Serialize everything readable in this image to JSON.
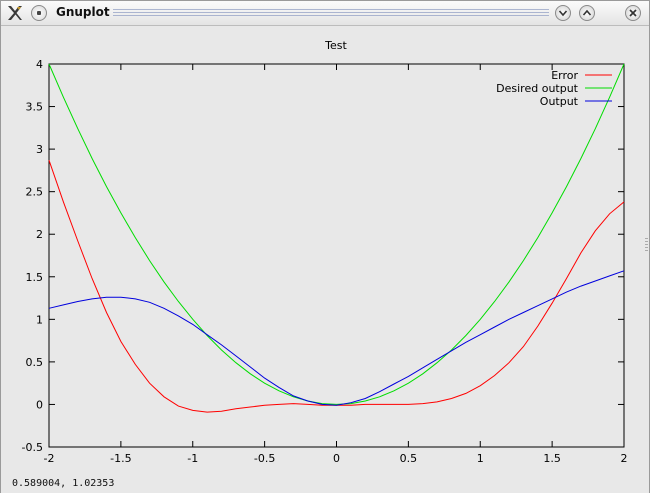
{
  "window": {
    "title": "Gnuplot",
    "app_icon": "x-logo-icon",
    "buttons": [
      "menu-icon",
      "minimize-icon",
      "maximize-icon",
      "close-icon"
    ]
  },
  "status": {
    "coordinates": "0.589004,  1.02353"
  },
  "chart_data": {
    "type": "line",
    "title": "Test",
    "xlabel": "",
    "ylabel": "",
    "xlim": [
      -2,
      2
    ],
    "ylim": [
      -0.5,
      4
    ],
    "x_ticks": [
      "-2",
      "-1.5",
      "-1",
      "-0.5",
      "0",
      "0.5",
      "1",
      "1.5",
      "2"
    ],
    "y_ticks": [
      "-0.5",
      "0",
      "0.5",
      "1",
      "1.5",
      "2",
      "2.5",
      "3",
      "3.5",
      "4"
    ],
    "grid": false,
    "legend_position": "top-right",
    "x": [
      -2,
      -1.9,
      -1.8,
      -1.7,
      -1.6,
      -1.5,
      -1.4,
      -1.3,
      -1.2,
      -1.1,
      -1,
      -0.9,
      -0.8,
      -0.7,
      -0.6,
      -0.5,
      -0.4,
      -0.3,
      -0.2,
      -0.1,
      0,
      0.1,
      0.2,
      0.3,
      0.4,
      0.5,
      0.6,
      0.7,
      0.8,
      0.9,
      1,
      1.1,
      1.2,
      1.3,
      1.4,
      1.5,
      1.6,
      1.7,
      1.8,
      1.9,
      2
    ],
    "series": [
      {
        "name": "Error",
        "color": "#ff0000",
        "values": [
          2.87,
          2.38,
          1.92,
          1.48,
          1.08,
          0.74,
          0.47,
          0.25,
          0.09,
          -0.02,
          -0.07,
          -0.09,
          -0.08,
          -0.05,
          -0.03,
          -0.01,
          0.0,
          0.01,
          0.0,
          -0.01,
          -0.01,
          -0.01,
          0.0,
          0.0,
          0.0,
          0.0,
          0.01,
          0.03,
          0.07,
          0.13,
          0.22,
          0.34,
          0.49,
          0.68,
          0.92,
          1.19,
          1.48,
          1.78,
          2.04,
          2.24,
          2.38
        ]
      },
      {
        "name": "Desired output",
        "color": "#00dd00",
        "values": [
          4.0,
          3.61,
          3.24,
          2.89,
          2.56,
          2.25,
          1.96,
          1.69,
          1.44,
          1.21,
          1.0,
          0.81,
          0.64,
          0.49,
          0.36,
          0.25,
          0.16,
          0.09,
          0.04,
          0.01,
          0.0,
          0.01,
          0.04,
          0.09,
          0.16,
          0.25,
          0.36,
          0.49,
          0.64,
          0.81,
          1.0,
          1.21,
          1.44,
          1.69,
          1.96,
          2.25,
          2.56,
          2.89,
          3.24,
          3.61,
          4.0
        ]
      },
      {
        "name": "Output",
        "color": "#0000dd",
        "values": [
          1.13,
          1.17,
          1.21,
          1.24,
          1.26,
          1.26,
          1.24,
          1.2,
          1.13,
          1.04,
          0.94,
          0.82,
          0.7,
          0.57,
          0.44,
          0.31,
          0.2,
          0.1,
          0.04,
          0.0,
          -0.01,
          0.02,
          0.07,
          0.15,
          0.24,
          0.33,
          0.43,
          0.53,
          0.63,
          0.73,
          0.82,
          0.91,
          1.0,
          1.08,
          1.16,
          1.24,
          1.32,
          1.39,
          1.45,
          1.51,
          1.57
        ]
      }
    ]
  }
}
